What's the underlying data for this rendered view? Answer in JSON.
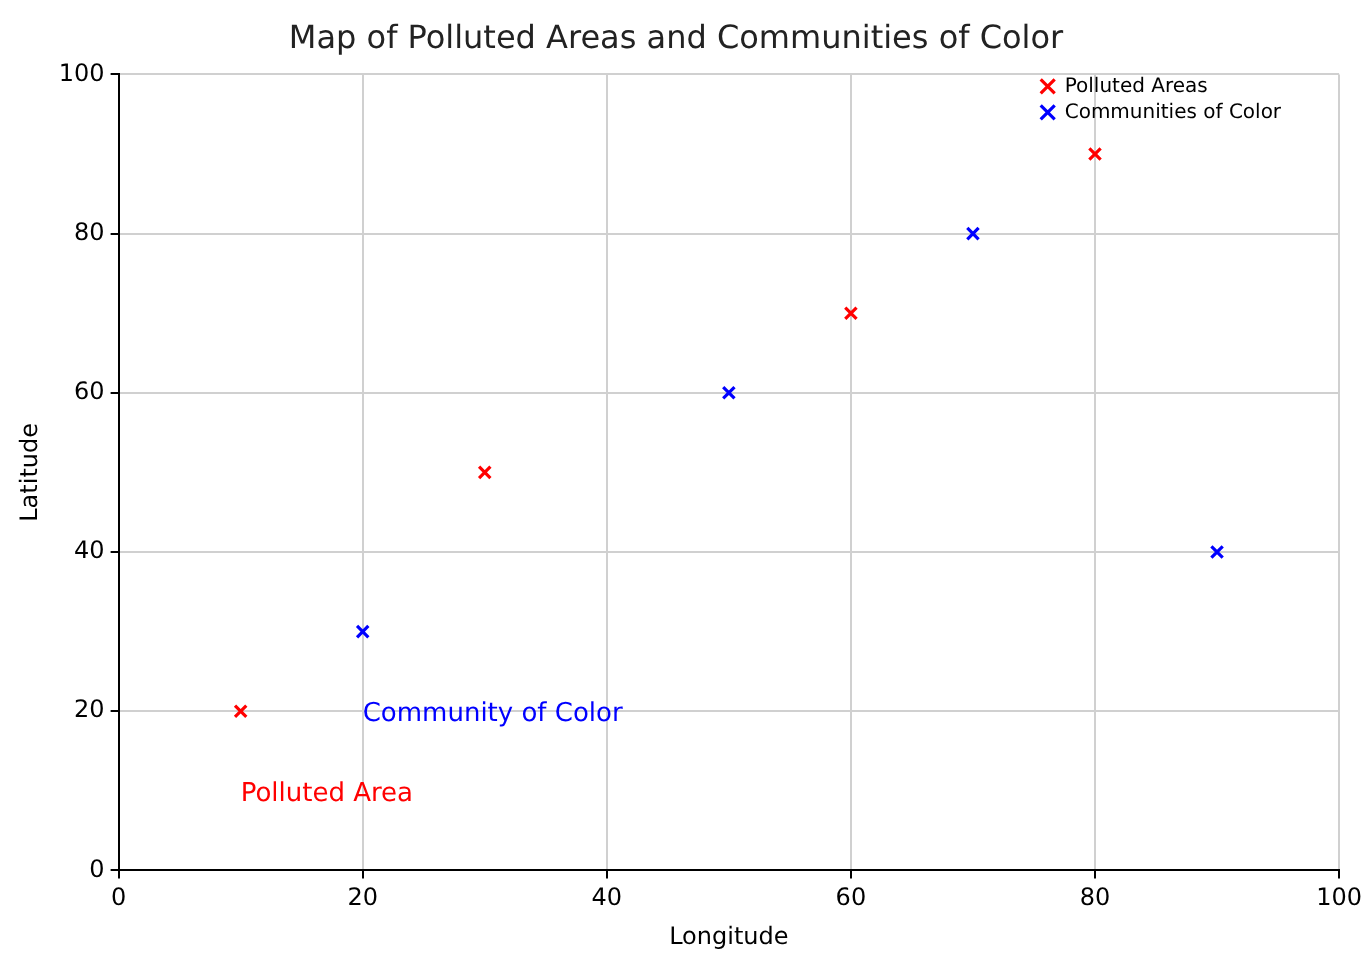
{
  "chart_data": {
    "type": "scatter",
    "title": "Map of Polluted Areas and Communities of Color",
    "xlabel": "Longitude",
    "ylabel": "Latitude",
    "series": [
      {
        "name": "Polluted Areas",
        "color": "#ff0000",
        "x": [
          10,
          30,
          60,
          80
        ],
        "values": [
          20,
          50,
          70,
          90
        ]
      },
      {
        "name": "Communities of Color",
        "color": "#0000ff",
        "x": [
          20,
          50,
          70,
          90
        ],
        "values": [
          30,
          60,
          80,
          40
        ]
      }
    ],
    "annotations": [
      "Polluted Area",
      "Community of Color"
    ],
    "xlim": [
      0,
      100
    ],
    "xticks": [
      0,
      20,
      40,
      60,
      80,
      100
    ],
    "ylim": [
      0,
      100
    ],
    "yticks": [
      0,
      20,
      40,
      60,
      80,
      100
    ],
    "grid": true,
    "legend": "top right",
    "marker": "cross"
  }
}
